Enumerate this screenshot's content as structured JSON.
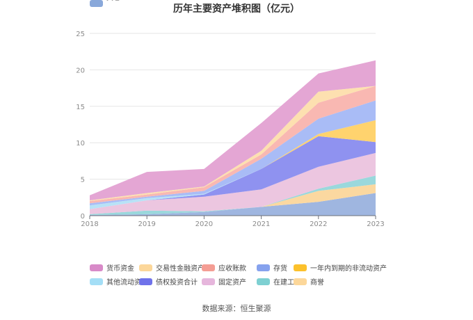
{
  "chart_data": {
    "type": "area",
    "stacked": true,
    "title": "历年主要资产堆积图（亿元）",
    "x": [
      "2018",
      "2019",
      "2020",
      "2021",
      "2022",
      "2023"
    ],
    "ylim": [
      0,
      25
    ],
    "yticks": [
      0,
      5,
      10,
      15,
      20,
      25
    ],
    "grid": true,
    "legend_position": "bottom",
    "series": [
      {
        "name": "其它",
        "color": "#9fb6e0",
        "values": [
          0.1,
          0.2,
          0.5,
          1.2,
          1.9,
          3.1
        ]
      },
      {
        "name": "商誉",
        "color": "#fbd8a0",
        "values": [
          0.0,
          0.0,
          0.0,
          0.0,
          1.5,
          1.2
        ]
      },
      {
        "name": "在建工程",
        "color": "#9ad8dc",
        "values": [
          0.1,
          0.5,
          0.1,
          0.0,
          0.3,
          1.2
        ]
      },
      {
        "name": "固定资产",
        "color": "#ecc6e0",
        "values": [
          0.7,
          1.4,
          2.0,
          2.4,
          3.0,
          3.1
        ]
      },
      {
        "name": "债权投资合计",
        "color": "#8f92f0",
        "values": [
          0.0,
          0.0,
          0.3,
          2.8,
          4.2,
          1.5
        ]
      },
      {
        "name": "其他流动资产",
        "color": "#b8e2f6",
        "values": [
          0.5,
          0.3,
          0.1,
          0.0,
          0.0,
          0.0
        ]
      },
      {
        "name": "一年内到期的非流动资产",
        "color": "#ffd36e",
        "values": [
          0.0,
          0.0,
          0.0,
          0.0,
          0.3,
          3.0
        ]
      },
      {
        "name": "存货",
        "color": "#a9bcf6",
        "values": [
          0.3,
          0.2,
          0.4,
          1.4,
          2.1,
          2.7
        ]
      },
      {
        "name": "应收账款",
        "color": "#f9b8b2",
        "values": [
          0.3,
          0.3,
          0.5,
          0.6,
          2.2,
          2.0
        ]
      },
      {
        "name": "交易性金融资产",
        "color": "#fde0b0",
        "values": [
          0.1,
          0.2,
          0.1,
          0.5,
          1.5,
          0.0
        ]
      },
      {
        "name": "货币资金",
        "color": "#e4a6d4",
        "values": [
          0.7,
          2.9,
          2.4,
          3.8,
          2.5,
          3.5
        ]
      }
    ],
    "legend_order": [
      "货币资金",
      "交易性金融资产",
      "应收账款",
      "存货",
      "一年内到期的非流动资产",
      "其他流动资产",
      "债权投资合计",
      "固定资产",
      "在建工程",
      "商誉",
      "其它"
    ],
    "legend_swatch_colors": {
      "货币资金": "#d88ac8",
      "交易性金融资产": "#fcd79a",
      "应收账款": "#f49d94",
      "存货": "#86a2ee",
      "一年内到期的非流动资产": "#fcc12c",
      "其他流动资产": "#a4def6",
      "债权投资合计": "#6f72ea",
      "固定资产": "#e6b6dc",
      "在建工程": "#7ed0d2",
      "商誉": "#fcd79a",
      "其它": "#89a8da"
    }
  },
  "source_text": "数据来源：恒生聚源"
}
